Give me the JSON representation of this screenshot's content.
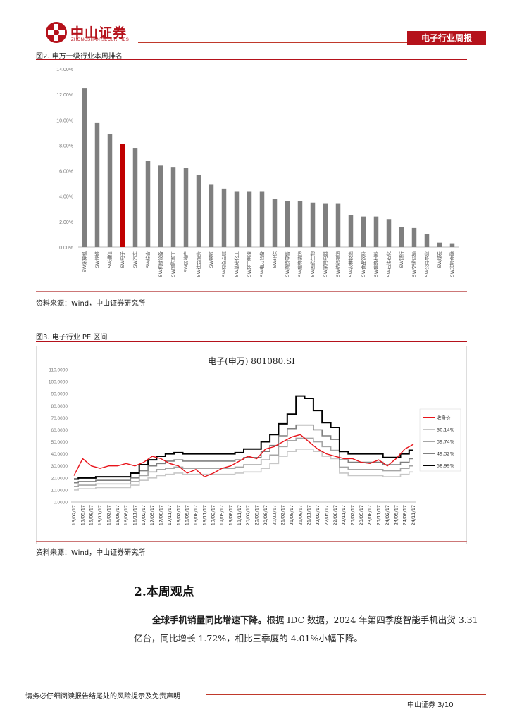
{
  "header": {
    "logo_cn": "中山证券",
    "logo_en": "ZHONGSHAN SECURITIES",
    "report_type": "电子行业周报"
  },
  "figure2": {
    "caption": "图2. 申万一级行业本周排名",
    "source": "资料来源：Wind，中山证券研究所"
  },
  "figure3": {
    "caption": "图3. 电子行业 PE 区间",
    "source": "资料来源：Wind，中山证券研究所"
  },
  "section": {
    "title": "2.本周观点",
    "para_lead": "全球手机销量同比增速下降。",
    "para_body": "根据 IDC 数据，2024 年第四季度智能手机出货 3.31 亿台，同比增长 1.72%，相比三季度的 4.01%小幅下降。"
  },
  "footer": {
    "disclaimer": "请务必仔细阅读报告结尾处的风险提示及免责声明",
    "page": "中山证券 3/10"
  },
  "colors": {
    "brand_red": "#b5121b",
    "bar_gray": "#7f7f7f",
    "highlight_bar": "#c00000"
  },
  "chart_data": [
    {
      "type": "bar",
      "ylim": [
        0,
        14
      ],
      "y_ticks": [
        "0.00%",
        "2.00%",
        "4.00%",
        "6.00%",
        "8.00%",
        "10.00%",
        "12.00%",
        "14.00%"
      ],
      "highlight_category": "SW电子",
      "categories": [
        "SW计算机",
        "SW传媒",
        "SW通信",
        "SW电子",
        "SW汽车",
        "SW综合",
        "SW机械设备",
        "SW国防军工",
        "SW房地产",
        "SW社会服务",
        "SW钢铁",
        "SW有色金属",
        "SW基础化工",
        "SW轻工制造",
        "SW电力设备",
        "SW环保",
        "SW商贸零售",
        "SW建筑装饰",
        "SW医药生物",
        "SW家用电器",
        "SW纺织服饰",
        "SW农林牧渔",
        "SW食品饮料",
        "SW建筑材料",
        "SW石油石化",
        "SW银行",
        "SW交通运输",
        "SW公用事业",
        "SW煤炭",
        "SW非银金融"
      ],
      "values": [
        12.5,
        9.8,
        8.9,
        8.1,
        7.8,
        6.8,
        6.4,
        6.3,
        6.2,
        5.7,
        4.9,
        4.6,
        4.4,
        4.4,
        4.4,
        3.8,
        3.6,
        3.6,
        3.5,
        3.4,
        3.4,
        2.5,
        2.4,
        2.4,
        2.2,
        1.6,
        1.5,
        1.0,
        0.35,
        0.3
      ]
    },
    {
      "type": "line",
      "title": "电子(申万) 801080.SI",
      "ylim": [
        0,
        110
      ],
      "y_ticks": [
        "0.0000",
        "10.0000",
        "20.0000",
        "30.0000",
        "40.0000",
        "50.0000",
        "60.0000",
        "70.0000",
        "80.0000",
        "90.0000",
        "100.0000",
        "110.0000"
      ],
      "x_ticks": [
        "15/02/17",
        "15/05/17",
        "15/08/17",
        "15/11/17",
        "16/02/17",
        "16/05/17",
        "16/08/17",
        "16/11/17",
        "17/02/17",
        "17/05/17",
        "17/08/17",
        "17/11/17",
        "18/02/17",
        "18/05/17",
        "18/08/17",
        "18/11/17",
        "19/02/17",
        "19/05/17",
        "19/08/17",
        "19/11/17",
        "20/02/17",
        "20/05/17",
        "20/08/17",
        "20/11/17",
        "21/02/17",
        "21/05/17",
        "21/08/17",
        "21/11/17",
        "22/02/17",
        "22/05/17",
        "22/08/17",
        "22/11/17",
        "23/02/17",
        "23/05/17",
        "23/08/17",
        "23/11/17",
        "24/02/17",
        "24/05/17",
        "24/08/17",
        "24/11/17"
      ],
      "legend_placement": "right",
      "series": [
        {
          "name": "收盘价",
          "color": "#e8141b",
          "values": [
            22,
            36,
            30,
            28,
            30,
            30,
            32,
            30,
            33,
            38,
            36,
            32,
            30,
            24,
            27,
            21,
            24,
            28,
            30,
            34,
            38,
            36,
            44,
            46,
            50,
            54,
            56,
            50,
            44,
            40,
            38,
            36,
            36,
            33,
            32,
            35,
            30,
            36,
            44,
            48
          ]
        },
        {
          "name": "30.14%",
          "color": "#c8c8c8",
          "values": [
            10,
            11,
            11,
            12,
            12,
            12,
            12,
            14,
            18,
            20,
            22,
            23,
            24,
            23,
            23,
            23,
            23,
            23,
            23,
            24,
            25,
            25,
            28,
            32,
            38,
            42,
            44,
            44,
            42,
            38,
            36,
            24,
            22,
            22,
            22,
            22,
            21,
            21,
            23,
            25
          ]
        },
        {
          "name": "39.74%",
          "color": "#a6a6a6",
          "values": [
            13,
            14,
            14,
            15,
            15,
            15,
            15,
            17,
            22,
            25,
            27,
            28,
            29,
            28,
            28,
            28,
            28,
            28,
            28,
            29,
            31,
            31,
            35,
            39,
            46,
            51,
            53,
            53,
            50,
            46,
            43,
            29,
            27,
            27,
            27,
            27,
            26,
            26,
            28,
            30
          ]
        },
        {
          "name": "49.32%",
          "color": "#808080",
          "values": [
            16,
            17,
            17,
            18,
            18,
            18,
            18,
            20,
            26,
            30,
            32,
            34,
            35,
            34,
            34,
            34,
            34,
            34,
            34,
            35,
            37,
            37,
            42,
            47,
            55,
            61,
            64,
            64,
            60,
            55,
            52,
            35,
            33,
            33,
            33,
            33,
            31,
            31,
            33,
            36
          ]
        },
        {
          "name": "58.99%",
          "color": "#000000",
          "values": [
            19,
            20,
            20,
            21,
            21,
            21,
            21,
            24,
            31,
            35,
            38,
            40,
            41,
            40,
            40,
            40,
            40,
            40,
            40,
            41,
            44,
            44,
            50,
            56,
            65,
            73,
            88,
            86,
            76,
            66,
            62,
            42,
            40,
            40,
            40,
            40,
            37,
            37,
            40,
            43
          ]
        }
      ]
    }
  ]
}
